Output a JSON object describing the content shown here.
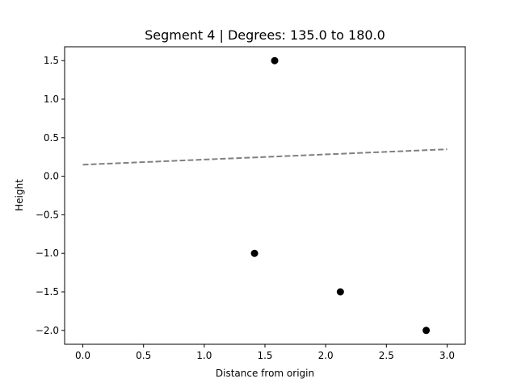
{
  "chart_data": {
    "type": "scatter",
    "title": "Segment 4 | Degrees: 135.0 to 180.0",
    "xlabel": "Distance from origin",
    "ylabel": "Height",
    "xlim": [
      -0.15,
      3.15
    ],
    "ylim": [
      -2.18,
      1.68
    ],
    "xticks": [
      0.0,
      0.5,
      1.0,
      1.5,
      2.0,
      2.5,
      3.0
    ],
    "xtick_labels": [
      "0.0",
      "0.5",
      "1.0",
      "1.5",
      "2.0",
      "2.5",
      "3.0"
    ],
    "yticks": [
      -2.0,
      -1.5,
      -1.0,
      -0.5,
      0.0,
      0.5,
      1.0,
      1.5
    ],
    "ytick_labels": [
      "−2.0",
      "−1.5",
      "−1.0",
      "−0.5",
      "0.0",
      "0.5",
      "1.0",
      "1.5"
    ],
    "grid": false,
    "points": [
      {
        "x": 1.58,
        "y": 1.5
      },
      {
        "x": 1.414,
        "y": -1.0
      },
      {
        "x": 2.121,
        "y": -1.5
      },
      {
        "x": 2.828,
        "y": -2.0
      }
    ],
    "point_color": "#000000",
    "fit_line": {
      "x": [
        0.0,
        3.0
      ],
      "y": [
        0.15,
        0.35
      ],
      "style": "dashed",
      "color": "#808080"
    }
  }
}
